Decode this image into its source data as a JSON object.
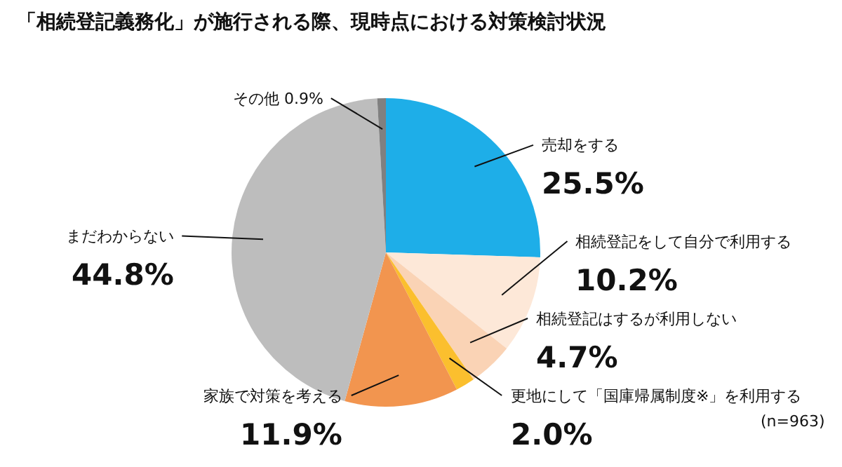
{
  "chart_data": {
    "type": "pie",
    "title": "「相続登記義務化」が施行される際、現時点における対策検討状況",
    "categories": [
      "売却をする",
      "相続登記をして自分で利用する",
      "相続登記はするが利用しない",
      "更地にして「国庫帰属制度※」を利用する",
      "家族で対策を考える",
      "まだわからない",
      "その他"
    ],
    "values": [
      25.5,
      10.2,
      4.7,
      2.0,
      11.9,
      44.8,
      0.9
    ],
    "value_labels": [
      "25.5%",
      "10.2%",
      "4.7%",
      "2.0%",
      "11.9%",
      "44.8%",
      "0.9%"
    ],
    "colors": [
      "#1eaee8",
      "#fde8d8",
      "#fad3b5",
      "#fbbf2e",
      "#f2954f",
      "#bdbdbd",
      "#808080"
    ],
    "annotations": [
      "(n=963)"
    ],
    "legend": false
  }
}
